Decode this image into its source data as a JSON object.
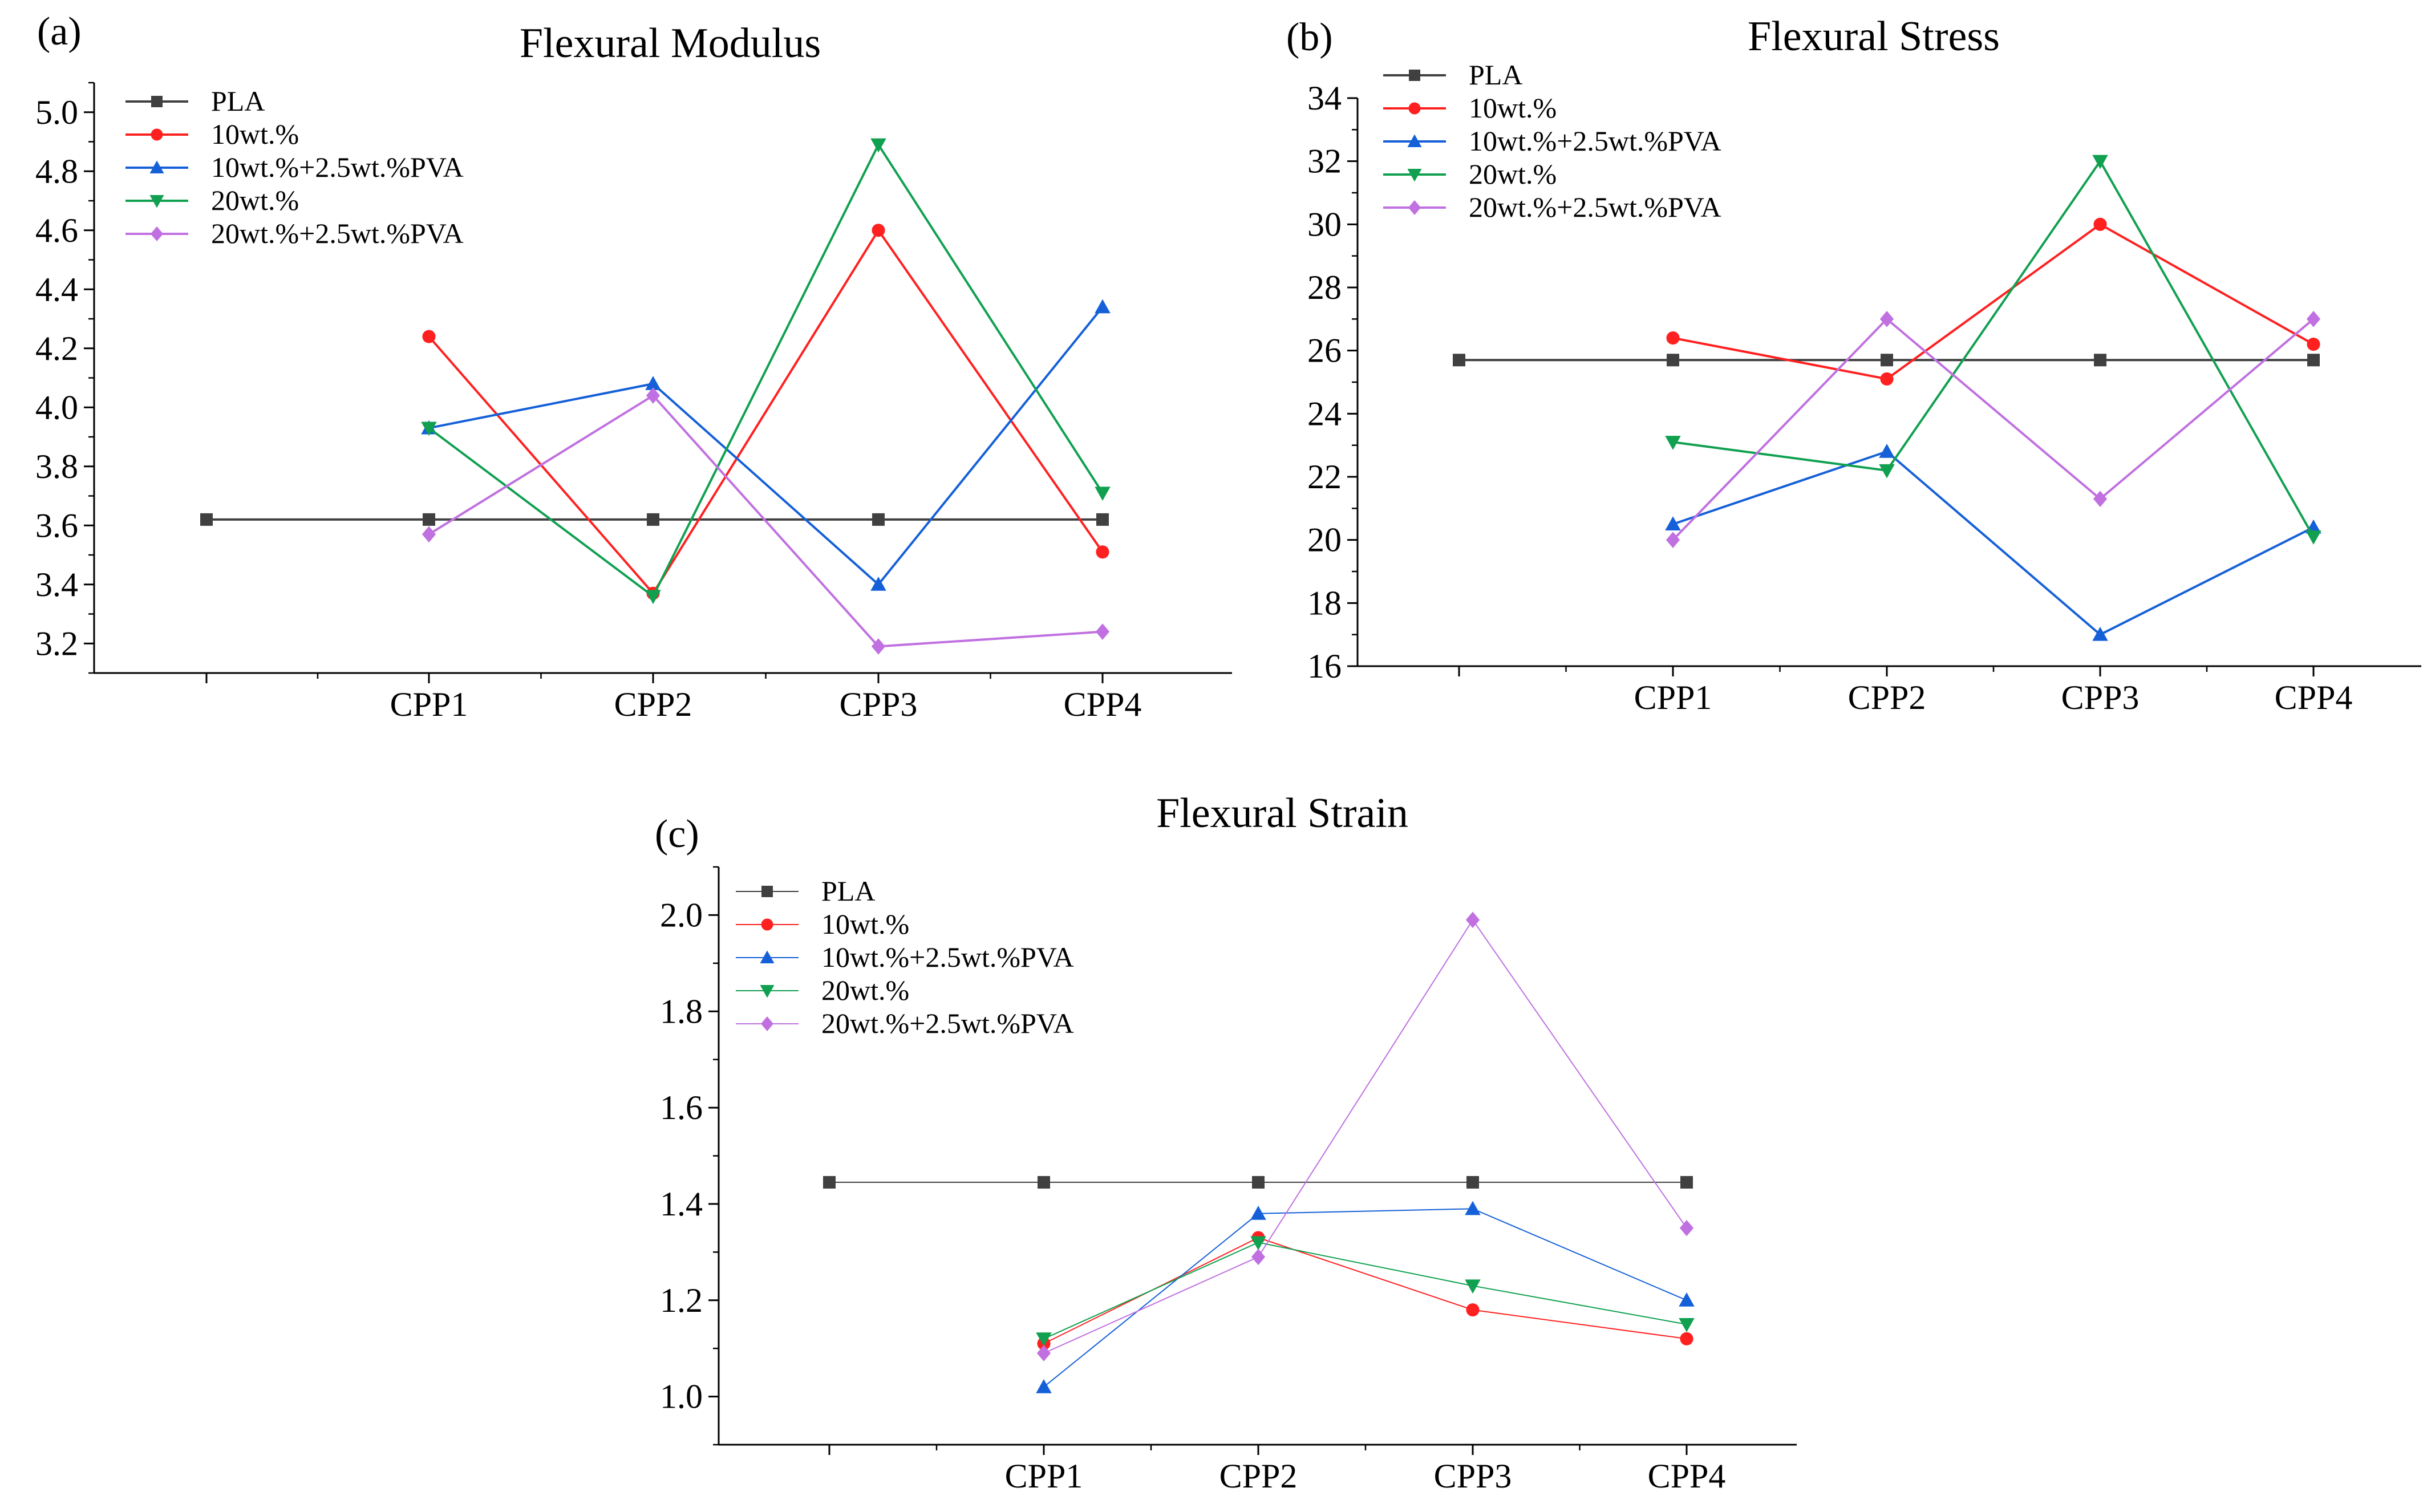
{
  "chart_data": [
    {
      "type": "line",
      "label": "(a)",
      "title": "Flexural Modulus",
      "xlabel": "",
      "ylabel": "",
      "categories": [
        "",
        "CPP1",
        "CPP2",
        "CPP3",
        "CPP4"
      ],
      "ylim": [
        3.1,
        5.1
      ],
      "yticks": [
        "3.2",
        "3.4",
        "3.6",
        "3.8",
        "4.0",
        "4.2",
        "4.4",
        "4.6",
        "4.8",
        "5.0"
      ],
      "legend_position": "top-left",
      "series": [
        {
          "name": "PLA",
          "color": "#404040",
          "marker": "square",
          "values": [
            3.62,
            3.62,
            3.62,
            3.62,
            3.62
          ]
        },
        {
          "name": "10wt.%",
          "color": "#ff2020",
          "marker": "circle",
          "values": [
            null,
            4.24,
            3.37,
            4.6,
            3.51
          ]
        },
        {
          "name": "10wt.%+2.5wt.%PVA",
          "color": "#1560d8",
          "marker": "triangle-up",
          "values": [
            null,
            3.93,
            4.08,
            3.4,
            4.34
          ]
        },
        {
          "name": "20wt.%",
          "color": "#10a050",
          "marker": "triangle-down",
          "values": [
            null,
            3.93,
            3.36,
            4.89,
            3.71
          ]
        },
        {
          "name": "20wt.%+2.5wt.%PVA",
          "color": "#c070e0",
          "marker": "diamond",
          "values": [
            null,
            3.57,
            4.04,
            3.19,
            3.24
          ]
        }
      ]
    },
    {
      "type": "line",
      "label": "(b)",
      "title": "Flexural Stress",
      "xlabel": "",
      "ylabel": "",
      "categories": [
        "",
        "CPP1",
        "CPP2",
        "CPP3",
        "CPP4"
      ],
      "ylim": [
        16,
        34
      ],
      "yticks": [
        "16",
        "18",
        "20",
        "22",
        "24",
        "26",
        "28",
        "30",
        "32",
        "34"
      ],
      "legend_position": "top-left",
      "series": [
        {
          "name": "PLA",
          "color": "#404040",
          "marker": "square",
          "values": [
            25.7,
            25.7,
            25.7,
            25.7,
            25.7
          ]
        },
        {
          "name": "10wt.%",
          "color": "#ff2020",
          "marker": "circle",
          "values": [
            null,
            26.4,
            25.1,
            30.0,
            26.2
          ]
        },
        {
          "name": "10wt.%+2.5wt.%PVA",
          "color": "#1560d8",
          "marker": "triangle-up",
          "values": [
            null,
            20.5,
            22.8,
            17.0,
            20.4
          ]
        },
        {
          "name": "20wt.%",
          "color": "#10a050",
          "marker": "triangle-down",
          "values": [
            null,
            23.1,
            22.2,
            32.0,
            20.1
          ]
        },
        {
          "name": "20wt.%+2.5wt.%PVA",
          "color": "#c070e0",
          "marker": "diamond",
          "values": [
            null,
            20.0,
            27.0,
            21.3,
            27.0
          ]
        }
      ]
    },
    {
      "type": "line",
      "label": "(c)",
      "title": "Flexural Strain",
      "xlabel": "",
      "ylabel": "",
      "categories": [
        "",
        "CPP1",
        "CPP2",
        "CPP3",
        "CPP4"
      ],
      "ylim": [
        0.9,
        2.1
      ],
      "yticks": [
        "1.0",
        "1.2",
        "1.4",
        "1.6",
        "1.8",
        "2.0"
      ],
      "legend_position": "top-left",
      "series": [
        {
          "name": "PLA",
          "color": "#404040",
          "marker": "square",
          "values": [
            1.445,
            1.445,
            1.445,
            1.445,
            1.445
          ]
        },
        {
          "name": "10wt.%",
          "color": "#ff2020",
          "marker": "circle",
          "values": [
            null,
            1.11,
            1.33,
            1.18,
            1.12
          ]
        },
        {
          "name": "10wt.%+2.5wt.%PVA",
          "color": "#1560d8",
          "marker": "triangle-up",
          "values": [
            null,
            1.02,
            1.38,
            1.39,
            1.2
          ]
        },
        {
          "name": "20wt.%",
          "color": "#10a050",
          "marker": "triangle-down",
          "values": [
            null,
            1.12,
            1.32,
            1.23,
            1.15
          ]
        },
        {
          "name": "20wt.%+2.5wt.%PVA",
          "color": "#c070e0",
          "marker": "diamond",
          "values": [
            null,
            1.09,
            1.29,
            1.99,
            1.35
          ]
        }
      ]
    }
  ]
}
